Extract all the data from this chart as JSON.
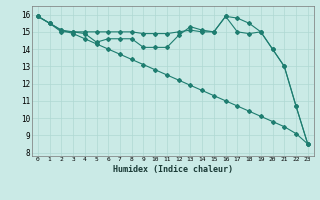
{
  "xlabel": "Humidex (Indice chaleur)",
  "bg_color": "#caeae6",
  "grid_color": "#afd8d3",
  "line_color": "#1e7d70",
  "xlim": [
    -0.5,
    23.5
  ],
  "ylim": [
    7.8,
    16.5
  ],
  "yticks": [
    8,
    9,
    10,
    11,
    12,
    13,
    14,
    15,
    16
  ],
  "xticks": [
    0,
    1,
    2,
    3,
    4,
    5,
    6,
    7,
    8,
    9,
    10,
    11,
    12,
    13,
    14,
    15,
    16,
    17,
    18,
    19,
    20,
    21,
    22,
    23
  ],
  "series_diagonal_x": [
    0,
    1,
    2,
    3,
    4,
    5,
    6,
    7,
    8,
    9,
    10,
    11,
    12,
    13,
    14,
    15,
    16,
    17,
    18,
    19,
    20,
    21,
    22,
    23
  ],
  "series_diagonal_y": [
    15.9,
    15.5,
    15.1,
    14.9,
    14.6,
    14.3,
    14.0,
    13.7,
    13.4,
    13.1,
    12.8,
    12.5,
    12.2,
    11.9,
    11.6,
    11.3,
    11.0,
    10.7,
    10.4,
    10.1,
    9.8,
    9.5,
    9.1,
    8.5
  ],
  "series_flat_x": [
    0,
    1,
    2,
    3,
    4,
    5,
    6,
    7,
    8,
    9,
    10,
    11,
    12,
    13,
    14,
    15,
    16,
    17,
    18,
    19,
    20,
    21,
    22,
    23
  ],
  "series_flat_y": [
    15.9,
    15.5,
    15.1,
    15.0,
    14.9,
    14.4,
    14.6,
    14.6,
    14.6,
    14.1,
    14.1,
    14.1,
    14.8,
    15.3,
    15.1,
    15.0,
    15.9,
    15.8,
    15.5,
    15.0,
    14.0,
    13.0,
    10.7,
    8.5
  ],
  "series_flat2_x": [
    0,
    1,
    2,
    3,
    4,
    5,
    6,
    7,
    8,
    9,
    10,
    11,
    12,
    13,
    14,
    15,
    16,
    17,
    18,
    19,
    20,
    21,
    22,
    23
  ],
  "series_flat2_y": [
    15.9,
    15.5,
    15.0,
    15.0,
    15.0,
    15.0,
    15.0,
    15.0,
    15.0,
    14.9,
    14.9,
    14.9,
    15.0,
    15.1,
    15.0,
    15.0,
    15.9,
    15.0,
    14.9,
    15.0,
    14.0,
    13.0,
    10.7,
    8.5
  ]
}
